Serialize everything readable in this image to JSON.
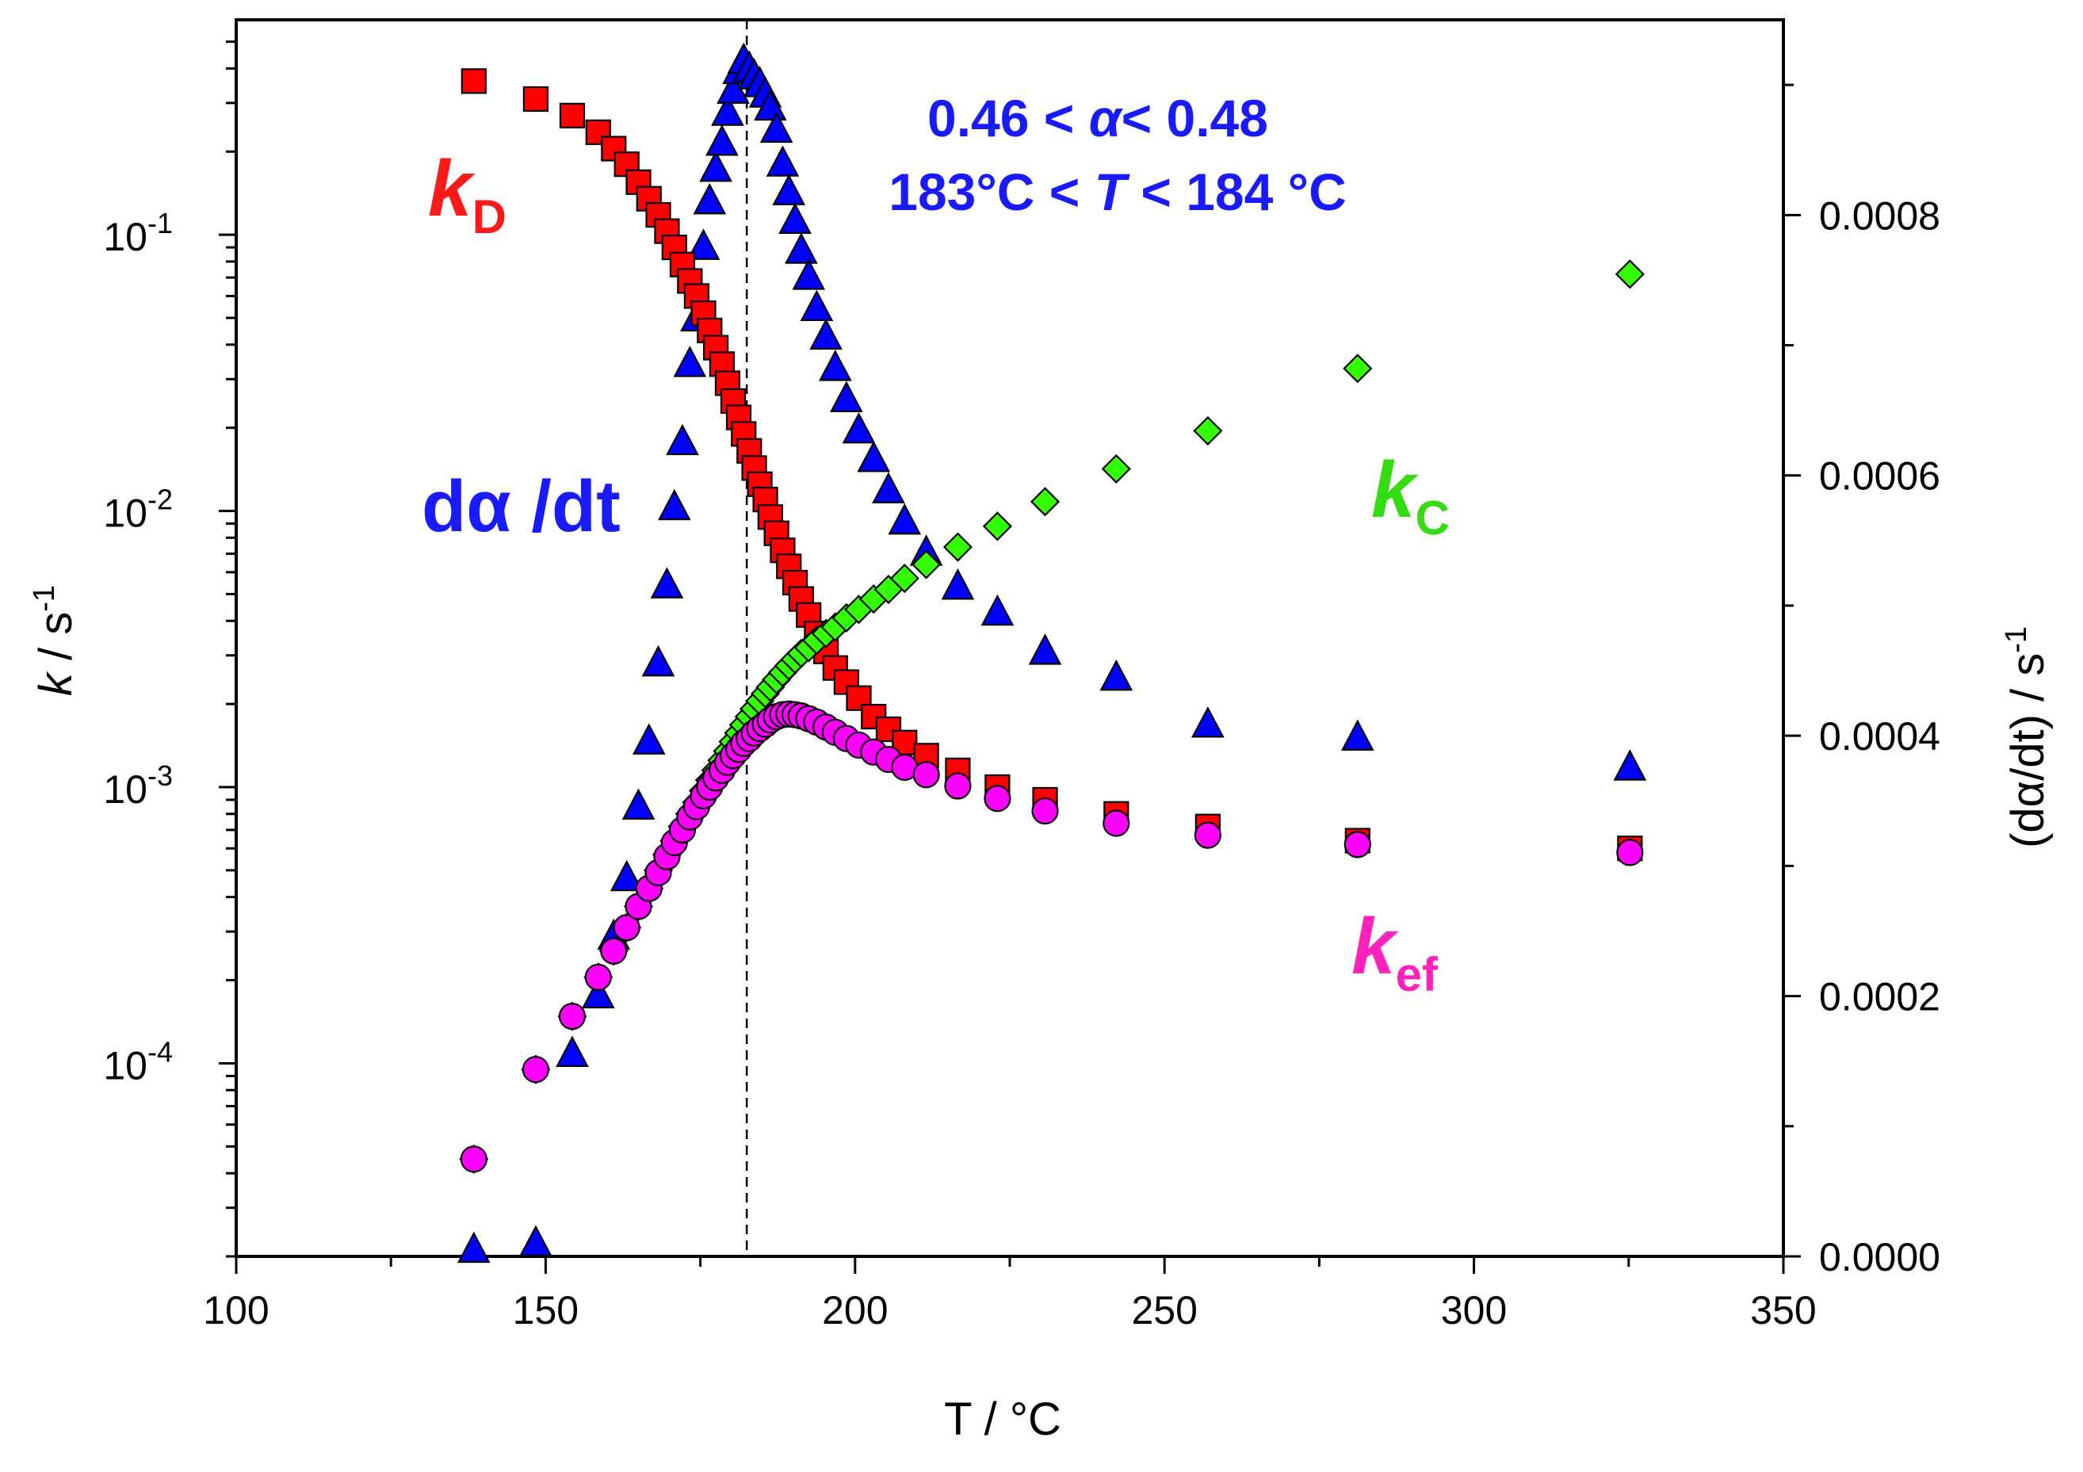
{
  "chart_data": {
    "type": "scatter",
    "title": "",
    "xlabel": "T / °C",
    "ylabel_left": {
      "italic": "k",
      "rest": " / s",
      "sup": "-1"
    },
    "ylabel_right": {
      "text": "(dα/dt) / s",
      "sup": "-1"
    },
    "xlim": [
      100,
      350
    ],
    "ylim_left_log": [
      2e-05,
      0.6
    ],
    "ylim_right": [
      0,
      0.00095
    ],
    "x_ticks": [
      "100",
      "150",
      "200",
      "250",
      "300",
      "350"
    ],
    "y_left_ticks": [
      {
        "base": "10",
        "exp": "-1"
      },
      {
        "base": "10",
        "exp": "-2"
      },
      {
        "base": "10",
        "exp": "-3"
      },
      {
        "base": "10",
        "exp": "-4"
      }
    ],
    "y_right_ticks": [
      "0.0000",
      "0.0002",
      "0.0004",
      "0.0006",
      "0.0008"
    ],
    "annotations": {
      "alpha_range": {
        "pre": "0.46 < ",
        "sym": "α",
        "post": "< 0.48"
      },
      "T_range": {
        "pre": "183°C < ",
        "sym": "T",
        "post": " < 184 °C"
      },
      "kD": {
        "main": "k",
        "sub": "D",
        "color": "#ff1a1a"
      },
      "kC": {
        "main": "k",
        "sub": "C",
        "color": "#33dd11"
      },
      "kef": {
        "main": "k",
        "sub": "ef",
        "color": "#ff22bb"
      },
      "dadt": {
        "main": "dα /dt",
        "color": "#1a1aff"
      }
    },
    "vline_x": 182.5,
    "series": [
      {
        "name": "kD",
        "marker": "square",
        "color": "#ff0000",
        "axis": "left",
        "x": [
          138.4,
          148.4,
          154.3,
          158.5,
          161.0,
          163.1,
          165.0,
          166.7,
          168.2,
          169.6,
          170.8,
          172.1,
          173.3,
          174.4,
          175.5,
          176.5,
          177.5,
          178.5,
          179.4,
          180.3,
          181.2,
          182.0,
          182.9,
          183.7,
          184.6,
          185.5,
          186.3,
          187.3,
          188.3,
          189.3,
          190.3,
          191.3,
          192.5,
          193.8,
          195.3,
          196.8,
          198.6,
          200.6,
          203.0,
          205.4,
          208.0,
          211.5,
          216.6,
          223.0,
          230.7,
          242.2,
          257.0,
          281.2,
          325.2
        ],
        "y": [
          0.36,
          0.31,
          0.27,
          0.235,
          0.205,
          0.18,
          0.155,
          0.135,
          0.118,
          0.103,
          0.09,
          0.078,
          0.068,
          0.06,
          0.052,
          0.045,
          0.039,
          0.034,
          0.029,
          0.025,
          0.0218,
          0.019,
          0.0165,
          0.0143,
          0.0125,
          0.011,
          0.0095,
          0.0083,
          0.0072,
          0.0063,
          0.0055,
          0.0048,
          0.0042,
          0.0036,
          0.0031,
          0.0027,
          0.0024,
          0.0021,
          0.0018,
          0.00162,
          0.00145,
          0.0013,
          0.00115,
          0.001,
          0.0009,
          0.0008,
          0.00072,
          0.00064,
          0.0006
        ]
      },
      {
        "name": "kC",
        "marker": "diamond",
        "color": "#33ff00",
        "axis": "left",
        "x": [
          138.4,
          148.4,
          154.3,
          158.5,
          161.0,
          163.1,
          165.0,
          166.7,
          168.2,
          169.6,
          170.8,
          172.1,
          173.3,
          174.4,
          175.5,
          176.5,
          177.5,
          178.5,
          179.4,
          180.3,
          181.2,
          182.0,
          182.9,
          183.7,
          184.6,
          185.5,
          186.3,
          187.3,
          188.3,
          189.3,
          190.3,
          191.3,
          192.5,
          193.8,
          195.3,
          196.8,
          198.6,
          200.6,
          203.0,
          205.4,
          208.0,
          211.5,
          216.6,
          223.0,
          230.7,
          242.2,
          257.0,
          281.2,
          325.2
        ],
        "y": [
          4.5e-05,
          9.5e-05,
          0.000148,
          0.000205,
          0.000255,
          0.00031,
          0.00037,
          0.00043,
          0.0005,
          0.00057,
          0.00064,
          0.00072,
          0.0008,
          0.00088,
          0.00097,
          0.00106,
          0.00115,
          0.00125,
          0.00135,
          0.00146,
          0.00157,
          0.00168,
          0.0018,
          0.00192,
          0.00205,
          0.00218,
          0.0023,
          0.00245,
          0.0026,
          0.00275,
          0.0029,
          0.00305,
          0.0032,
          0.0034,
          0.0036,
          0.0038,
          0.0041,
          0.0044,
          0.0048,
          0.0052,
          0.0057,
          0.0064,
          0.0074,
          0.0088,
          0.0108,
          0.0142,
          0.0195,
          0.0328,
          0.072
        ]
      },
      {
        "name": "kef",
        "marker": "circle",
        "color": "#ff00ff",
        "axis": "left",
        "x": [
          138.4,
          148.4,
          154.3,
          158.5,
          161.0,
          163.1,
          165.0,
          166.7,
          168.2,
          169.6,
          170.8,
          172.1,
          173.3,
          174.4,
          175.5,
          176.5,
          177.5,
          178.5,
          179.4,
          180.3,
          181.2,
          182.0,
          182.9,
          183.7,
          184.6,
          185.5,
          186.3,
          187.3,
          188.3,
          189.3,
          190.3,
          191.3,
          192.5,
          193.8,
          195.3,
          196.8,
          198.6,
          200.6,
          203.0,
          205.4,
          208.0,
          211.5,
          216.6,
          223.0,
          230.7,
          242.2,
          257.0,
          281.2,
          325.2
        ],
        "y": [
          4.5e-05,
          9.5e-05,
          0.000148,
          0.000205,
          0.000255,
          0.00031,
          0.00037,
          0.00043,
          0.00049,
          0.00056,
          0.00063,
          0.0007,
          0.00078,
          0.00085,
          0.00093,
          0.001,
          0.00108,
          0.00115,
          0.00123,
          0.0013,
          0.00137,
          0.00144,
          0.0015,
          0.00157,
          0.00163,
          0.00169,
          0.00175,
          0.0018,
          0.00183,
          0.00184,
          0.00183,
          0.00181,
          0.00177,
          0.00172,
          0.00165,
          0.00158,
          0.0015,
          0.00142,
          0.00134,
          0.00126,
          0.00118,
          0.00111,
          0.00101,
          0.00091,
          0.00082,
          0.00074,
          0.00067,
          0.00062,
          0.00058
        ]
      },
      {
        "name": "dα/dt",
        "marker": "triangle",
        "color": "#0000ff",
        "axis": "right",
        "x": [
          138.4,
          148.4,
          154.3,
          158.5,
          161.0,
          163.1,
          165.0,
          166.7,
          168.2,
          169.6,
          170.8,
          172.1,
          173.3,
          174.4,
          175.5,
          176.5,
          177.5,
          178.5,
          179.4,
          180.3,
          181.2,
          182.0,
          182.9,
          183.7,
          184.6,
          185.5,
          186.3,
          187.3,
          188.3,
          189.3,
          190.3,
          191.3,
          192.5,
          193.8,
          195.3,
          196.8,
          198.6,
          200.6,
          203.0,
          205.4,
          208.0,
          211.5,
          216.6,
          223.0,
          230.7,
          242.2,
          257.0,
          281.2,
          325.2
        ],
        "y": [
          4.5e-06,
          9.5e-06,
          0.000155,
          0.0002,
          0.000245,
          0.00029,
          0.000345,
          0.000395,
          0.000455,
          0.000515,
          0.000575,
          0.000625,
          0.000685,
          0.00072,
          0.000775,
          0.00081,
          0.000835,
          0.000855,
          0.000878,
          0.000895,
          0.00091,
          0.000918,
          0.000912,
          0.000906,
          0.0009,
          0.000892,
          0.000882,
          0.000865,
          0.000839,
          0.000817,
          0.000795,
          0.000772,
          0.000752,
          0.000728,
          0.000706,
          0.000682,
          0.000658,
          0.000634,
          0.000612,
          0.000588,
          0.000564,
          0.00054,
          0.000514,
          0.000494,
          0.000464,
          0.000444,
          0.000408,
          0.000398,
          0.000375
        ],
        "y_comment": "values approximated from the right axis"
      }
    ]
  }
}
